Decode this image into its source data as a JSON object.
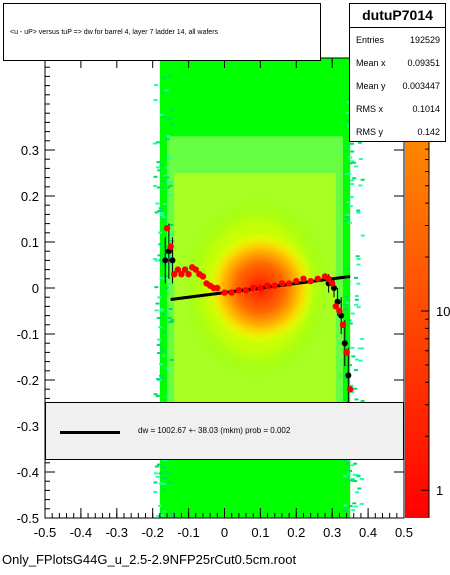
{
  "title": "<u - uP>       versus  tuP =>  dw for barrel 4, layer 7 ladder 14, all wafers",
  "stats": {
    "name": "dutuP7014",
    "rows": [
      {
        "label": "Entries",
        "value": "192529"
      },
      {
        "label": "Mean x",
        "value": "0.09351"
      },
      {
        "label": "Mean y",
        "value": "0.003447"
      },
      {
        "label": "RMS x",
        "value": "0.1014"
      },
      {
        "label": "RMS y",
        "value": "0.142"
      }
    ]
  },
  "legend": {
    "text": "dw = 1002.67 +- 38.03 (mkm) prob = 0.002"
  },
  "footer": "Only_FPlotsG44G_u_2.5-2.9NFP25rCut0.5cm.root",
  "chart_data": {
    "type": "heatmap",
    "xlim": [
      -0.5,
      0.5
    ],
    "ylim": [
      -0.5,
      0.5
    ],
    "x_ticks": [
      "-0.5",
      "-0.4",
      "-0.3",
      "-0.2",
      "-0.1",
      "0",
      "0.1",
      "0.2",
      "0.3",
      "0.4",
      "0.5"
    ],
    "y_ticks": [
      "-0.5",
      "-0.4",
      "-0.3",
      "-0.2",
      "-0.1",
      "0",
      "0.1",
      "0.2",
      "0.3"
    ],
    "z_ticks": [
      "1",
      "10"
    ],
    "z_scale": "log",
    "colors": {
      "low": "#00ff00",
      "mid": "#ffff00",
      "high": "#ff0000",
      "palette_top": "#ff8800"
    },
    "fit_line": {
      "x": [
        -0.15,
        0.35
      ],
      "y": [
        -0.025,
        0.025
      ]
    },
    "profile_black": {
      "x": [
        -0.165,
        -0.155,
        -0.145,
        0.29,
        0.305,
        0.315,
        0.325,
        0.335,
        0.345
      ],
      "y": [
        0.06,
        0.08,
        0.06,
        0.01,
        0.0,
        -0.03,
        -0.06,
        -0.12,
        -0.19
      ],
      "err": [
        0.05,
        0.06,
        0.05,
        0.02,
        0.02,
        0.03,
        0.04,
        0.05,
        0.06
      ]
    },
    "profile_red": {
      "x": [
        -0.16,
        -0.15,
        -0.14,
        -0.13,
        -0.12,
        -0.11,
        -0.1,
        -0.09,
        -0.08,
        -0.07,
        -0.06,
        -0.05,
        -0.04,
        -0.03,
        -0.02,
        0.0,
        0.02,
        0.04,
        0.06,
        0.08,
        0.1,
        0.12,
        0.14,
        0.16,
        0.18,
        0.2,
        0.22,
        0.24,
        0.26,
        0.28,
        0.29,
        0.3,
        0.31,
        0.32,
        0.33,
        0.34,
        0.35
      ],
      "y": [
        0.13,
        0.09,
        0.03,
        0.04,
        0.03,
        0.04,
        0.03,
        0.045,
        0.04,
        0.03,
        0.025,
        0.01,
        0.005,
        0.0,
        0.0,
        -0.01,
        -0.01,
        -0.005,
        -0.005,
        0.0,
        0.0,
        0.005,
        0.005,
        0.01,
        0.01,
        0.015,
        0.02,
        0.015,
        0.02,
        0.025,
        0.02,
        0.01,
        -0.04,
        -0.05,
        -0.08,
        -0.14,
        -0.22
      ]
    }
  }
}
